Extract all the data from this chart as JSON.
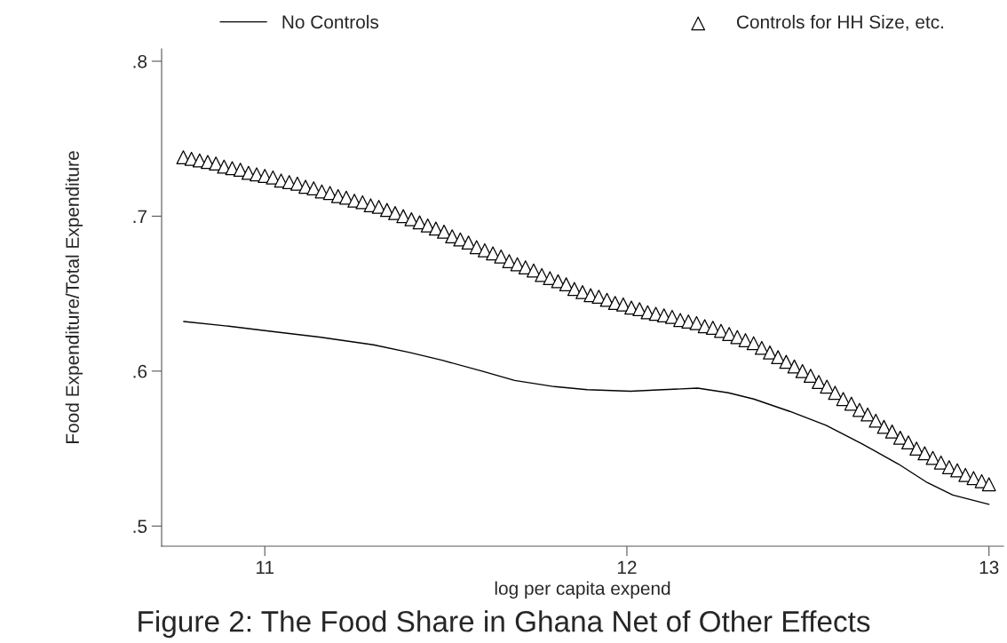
{
  "chart_data": {
    "type": "line",
    "title": "Figure 2: The Food Share in Ghana Net of Other Effects",
    "xlabel": "log per capita expend",
    "ylabel": "Food Expenditure/Total Expenditure",
    "xlim": [
      10.715,
      13.04
    ],
    "xticks": [
      11,
      12,
      13
    ],
    "ylim": [
      0.487,
      0.808
    ],
    "yticks": [
      {
        "value": 0.5,
        "label": ".5"
      },
      {
        "value": 0.6,
        "label": ".6"
      },
      {
        "value": 0.7,
        "label": ".7"
      },
      {
        "value": 0.8,
        "label": ".8"
      }
    ],
    "grid": false,
    "legend": "top",
    "series": [
      {
        "name": "No Controls",
        "type": "line",
        "color": "#000000",
        "marker": "none",
        "line_style": "solid",
        "x": [
          10.776,
          10.9,
          11.005,
          11.15,
          11.3,
          11.4,
          11.49,
          11.6,
          11.69,
          11.8,
          11.89,
          12.01,
          12.1,
          12.195,
          12.28,
          12.35,
          12.45,
          12.55,
          12.65,
          12.75,
          12.83,
          12.9,
          13.0
        ],
        "values": [
          0.632,
          0.629,
          0.626,
          0.622,
          0.617,
          0.612,
          0.607,
          0.6,
          0.594,
          0.59,
          0.588,
          0.587,
          0.588,
          0.589,
          0.586,
          0.582,
          0.574,
          0.565,
          0.553,
          0.54,
          0.528,
          0.52,
          0.514
        ]
      },
      {
        "name": "Controls for HH Size, etc.",
        "type": "scatter",
        "color": "#000000",
        "marker": "triangle",
        "x": [
          10.775,
          10.7975,
          10.82,
          10.8425,
          10.865,
          10.8875,
          10.91,
          10.9325,
          10.955,
          10.9775,
          11.0,
          11.0225,
          11.045,
          11.0675,
          11.09,
          11.1125,
          11.135,
          11.1575,
          11.18,
          11.2025,
          11.225,
          11.2475,
          11.27,
          11.2925,
          11.315,
          11.3375,
          11.36,
          11.3825,
          11.405,
          11.4275,
          11.45,
          11.4725,
          11.495,
          11.5175,
          11.54,
          11.5625,
          11.585,
          11.6075,
          11.63,
          11.6525,
          11.675,
          11.6975,
          11.72,
          11.7425,
          11.765,
          11.7875,
          11.81,
          11.8325,
          11.855,
          11.8775,
          11.9,
          11.9225,
          11.945,
          11.9675,
          11.99,
          12.0125,
          12.035,
          12.0575,
          12.08,
          12.1025,
          12.125,
          12.1475,
          12.17,
          12.1925,
          12.215,
          12.2375,
          12.26,
          12.2825,
          12.305,
          12.3275,
          12.35,
          12.3725,
          12.395,
          12.4175,
          12.44,
          12.4625,
          12.485,
          12.5075,
          12.53,
          12.5525,
          12.575,
          12.5975,
          12.62,
          12.6425,
          12.665,
          12.6875,
          12.71,
          12.7325,
          12.755,
          12.7775,
          12.8,
          12.8225,
          12.845,
          12.8675,
          12.89,
          12.9125,
          12.935,
          12.9575,
          12.98,
          13.0
        ],
        "values": [
          0.738,
          0.737,
          0.736,
          0.735,
          0.734,
          0.732,
          0.731,
          0.73,
          0.728,
          0.727,
          0.726,
          0.725,
          0.723,
          0.722,
          0.721,
          0.719,
          0.718,
          0.716,
          0.715,
          0.713,
          0.712,
          0.71,
          0.709,
          0.707,
          0.706,
          0.704,
          0.702,
          0.7,
          0.698,
          0.696,
          0.694,
          0.692,
          0.69,
          0.687,
          0.685,
          0.683,
          0.68,
          0.678,
          0.676,
          0.674,
          0.671,
          0.669,
          0.667,
          0.665,
          0.662,
          0.66,
          0.658,
          0.656,
          0.653,
          0.651,
          0.649,
          0.648,
          0.646,
          0.644,
          0.643,
          0.641,
          0.64,
          0.638,
          0.637,
          0.636,
          0.635,
          0.633,
          0.632,
          0.631,
          0.629,
          0.628,
          0.626,
          0.624,
          0.622,
          0.62,
          0.618,
          0.615,
          0.612,
          0.609,
          0.606,
          0.603,
          0.6,
          0.597,
          0.593,
          0.59,
          0.586,
          0.582,
          0.579,
          0.575,
          0.572,
          0.568,
          0.564,
          0.561,
          0.557,
          0.554,
          0.55,
          0.547,
          0.544,
          0.541,
          0.538,
          0.536,
          0.533,
          0.531,
          0.529,
          0.527
        ]
      }
    ]
  }
}
